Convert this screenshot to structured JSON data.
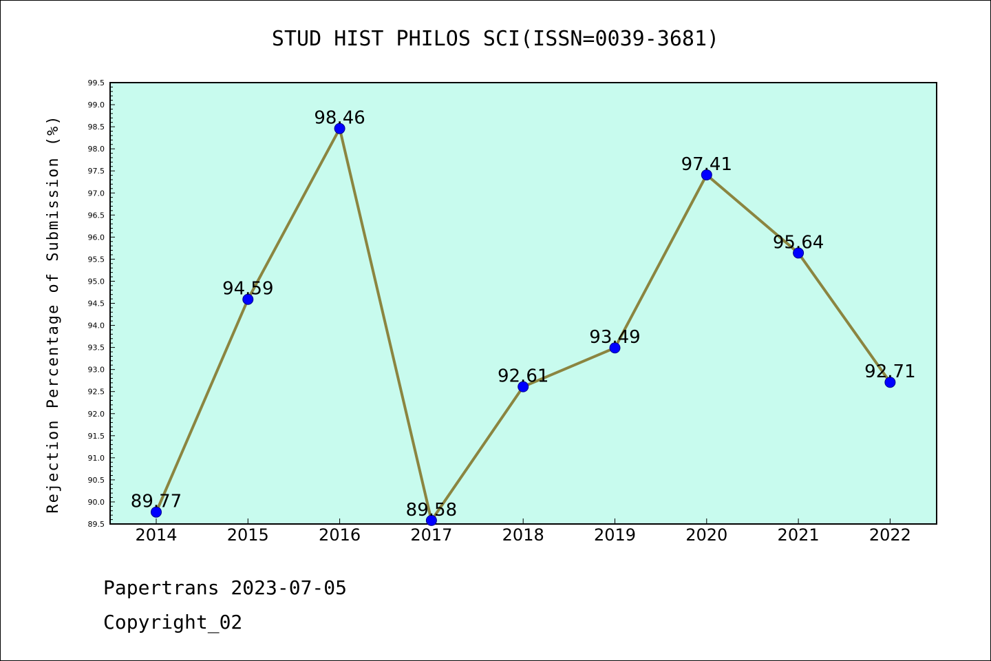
{
  "chart_data": {
    "type": "line",
    "title": "STUD HIST PHILOS SCI(ISSN=0039-3681)",
    "xlabel": "",
    "ylabel": "Rejection Percentage of Submission (%)",
    "categories": [
      "2014",
      "2015",
      "2016",
      "2017",
      "2018",
      "2019",
      "2020",
      "2021",
      "2022"
    ],
    "series": [
      {
        "values": [
          89.77,
          94.59,
          98.46,
          89.58,
          92.61,
          93.49,
          97.41,
          95.64,
          92.71
        ]
      }
    ],
    "data_labels": [
      "89.77",
      "94.59",
      "98.46",
      "89.58",
      "92.61",
      "93.49",
      "97.41",
      "95.64",
      "92.71"
    ],
    "ylim": [
      89.5,
      99.5
    ],
    "yticks": [
      "89.5",
      "90.0",
      "90.5",
      "91.0",
      "91.5",
      "92.0",
      "92.5",
      "93.0",
      "93.5",
      "94.0",
      "94.5",
      "95.0",
      "95.5",
      "96.0",
      "96.5",
      "97.0",
      "97.5",
      "98.0",
      "98.5",
      "99.0",
      "99.5"
    ],
    "grid": false,
    "colors": {
      "plot_background": "#c8fbee",
      "line": "#8b8540",
      "marker": "#0000ff"
    }
  },
  "footer": {
    "line1": "Papertrans 2023-07-05",
    "line2": "Copyright_02"
  }
}
